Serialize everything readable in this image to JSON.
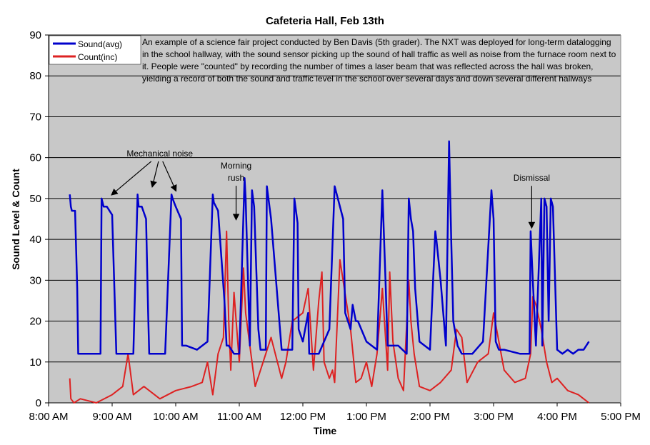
{
  "chart_data": {
    "type": "line",
    "title": "Cafeteria Hall, Feb 13th",
    "xlabel": "Time",
    "ylabel": "Sound Level & Count",
    "ylim": [
      0,
      90
    ],
    "yticks": [
      0,
      10,
      20,
      30,
      40,
      50,
      60,
      70,
      80,
      90
    ],
    "xlim": [
      "8:00 AM",
      "5:00 PM"
    ],
    "xticks": [
      "8:00 AM",
      "9:00 AM",
      "10:00 AM",
      "11:00 AM",
      "12:00 PM",
      "1:00 PM",
      "2:00 PM",
      "3:00 PM",
      "4:00 PM",
      "5:00 PM"
    ],
    "grid": "horizontal",
    "plot_background": "#c8c8c8",
    "legend_position": "top-left",
    "series": [
      {
        "name": "Sound(avg)",
        "color": "#0000cc",
        "x": [
          "8:20",
          "8:21",
          "8:22",
          "8:25",
          "8:27",
          "8:28",
          "8:35",
          "8:45",
          "8:49",
          "8:50",
          "8:52",
          "8:55",
          "9:00",
          "9:04",
          "9:05",
          "9:10",
          "9:20",
          "9:24",
          "9:25",
          "9:28",
          "9:32",
          "9:34",
          "9:35",
          "9:40",
          "9:50",
          "9:56",
          "9:57",
          "10:00",
          "10:05",
          "10:06",
          "10:10",
          "10:20",
          "10:30",
          "10:35",
          "10:36",
          "10:40",
          "10:46",
          "10:48",
          "10:50",
          "10:55",
          "11:00",
          "11:05",
          "11:06",
          "11:10",
          "11:12",
          "11:14",
          "11:18",
          "11:20",
          "11:25",
          "11:26",
          "11:30",
          "11:40",
          "11:50",
          "11:52",
          "11:55",
          "11:56",
          "12:00",
          "12:05",
          "12:06",
          "12:15",
          "12:25",
          "12:30",
          "12:38",
          "12:40",
          "12:45",
          "12:47",
          "12:50",
          "12:52",
          "13:00",
          "13:10",
          "13:15",
          "13:18",
          "13:20",
          "13:30",
          "13:38",
          "13:40",
          "13:42",
          "13:44",
          "13:46",
          "13:50",
          "14:00",
          "14:05",
          "14:06",
          "14:10",
          "14:15",
          "14:18",
          "14:20",
          "14:22",
          "14:26",
          "14:30",
          "14:40",
          "14:50",
          "14:58",
          "15:00",
          "15:02",
          "15:05",
          "15:10",
          "15:25",
          "15:34",
          "15:35",
          "15:37",
          "15:40",
          "15:45",
          "15:46",
          "15:48",
          "15:50",
          "15:52",
          "15:54",
          "15:56",
          "16:00",
          "16:05",
          "16:10",
          "16:15",
          "16:20",
          "16:25",
          "16:30"
        ],
        "values": [
          51,
          48,
          47,
          47,
          28,
          12,
          12,
          12,
          12,
          50,
          48,
          48,
          46,
          12,
          12,
          12,
          12,
          51,
          48,
          48,
          45,
          22,
          12,
          12,
          12,
          51,
          50,
          48,
          45,
          14,
          14,
          13,
          15,
          51,
          49,
          47,
          25,
          14,
          14,
          12,
          12,
          55,
          50,
          14,
          52,
          48,
          18,
          13,
          13,
          53,
          45,
          13,
          13,
          50,
          44,
          18,
          15,
          22,
          12,
          12,
          18,
          53,
          45,
          22,
          18,
          24,
          20,
          20,
          15,
          13,
          52,
          30,
          14,
          14,
          12,
          50,
          45,
          42,
          28,
          15,
          13,
          42,
          40,
          30,
          14,
          64,
          40,
          20,
          14,
          12,
          12,
          15,
          52,
          45,
          15,
          13,
          13,
          12,
          12,
          42,
          30,
          14,
          50,
          14,
          50,
          48,
          20,
          50,
          48,
          13,
          12,
          13,
          12,
          13,
          13,
          15
        ]
      },
      {
        "name": "Count(inc)",
        "color": "#dd2222",
        "x": [
          "8:20",
          "8:21",
          "8:24",
          "8:30",
          "8:45",
          "9:00",
          "9:10",
          "9:15",
          "9:20",
          "9:30",
          "9:45",
          "10:00",
          "10:15",
          "10:25",
          "10:30",
          "10:35",
          "10:40",
          "10:45",
          "10:48",
          "10:50",
          "10:52",
          "10:55",
          "11:00",
          "11:04",
          "11:06",
          "11:10",
          "11:15",
          "11:20",
          "11:30",
          "11:40",
          "11:44",
          "11:50",
          "12:00",
          "12:05",
          "12:10",
          "12:15",
          "12:18",
          "12:20",
          "12:25",
          "12:28",
          "12:30",
          "12:35",
          "12:45",
          "12:50",
          "12:55",
          "13:00",
          "13:05",
          "13:10",
          "13:15",
          "13:20",
          "13:22",
          "13:25",
          "13:30",
          "13:35",
          "13:40",
          "13:42",
          "13:45",
          "13:50",
          "14:00",
          "14:10",
          "14:20",
          "14:25",
          "14:30",
          "14:35",
          "14:45",
          "14:55",
          "15:00",
          "15:10",
          "15:20",
          "15:30",
          "15:35",
          "15:37",
          "15:40",
          "15:45",
          "15:50",
          "15:55",
          "16:00",
          "16:10",
          "16:20",
          "16:25",
          "16:30"
        ],
        "values": [
          6,
          1,
          0,
          1,
          0,
          2,
          4,
          12,
          2,
          4,
          1,
          3,
          4,
          5,
          10,
          2,
          12,
          16,
          42,
          20,
          8,
          27,
          10,
          33,
          22,
          14,
          4,
          8,
          16,
          6,
          10,
          20,
          22,
          28,
          8,
          25,
          32,
          10,
          6,
          8,
          5,
          35,
          18,
          5,
          6,
          10,
          4,
          12,
          28,
          8,
          32,
          15,
          6,
          3,
          30,
          20,
          12,
          4,
          3,
          5,
          8,
          18,
          16,
          5,
          10,
          12,
          22,
          8,
          5,
          6,
          12,
          26,
          24,
          18,
          10,
          5,
          6,
          3,
          2,
          1,
          0
        ]
      }
    ],
    "annotations": [
      {
        "text": "Mechanical noise",
        "at": "9:45",
        "y": 61,
        "arrows_to": [
          [
            "9:00",
            51
          ],
          [
            "9:38",
            53
          ],
          [
            "10:00",
            52
          ]
        ]
      },
      {
        "text": "Morning\nrush",
        "at": "10:57",
        "y": 58,
        "arrows_to": [
          [
            "10:57",
            45
          ]
        ]
      },
      {
        "text": "Dismissal",
        "at": "15:36",
        "y": 55,
        "arrows_to": [
          [
            "15:36",
            43
          ]
        ]
      }
    ],
    "note": "An example of a science fair project conducted by Ben Davis (5th grader). The NXT was deployed for long-term datalogging in the school hallway, with the sound sensor picking up the sound of hall traffic as well as noise from the furnace room next to it. People were \"counted\" by recording the number of times a laser beam that was reflected across the hall was broken, yielding a record of both the sound and traffic level in the school over several days and down several different hallways"
  }
}
